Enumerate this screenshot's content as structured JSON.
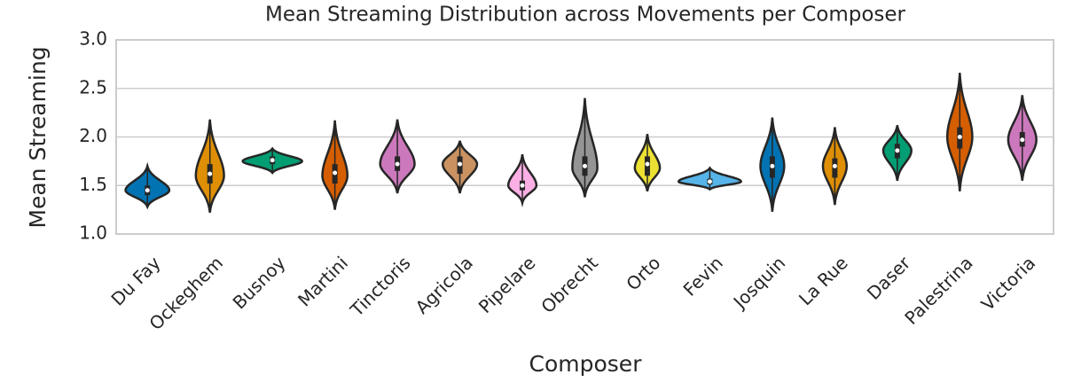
{
  "chart_data": {
    "type": "violin",
    "title": "Mean Streaming Distribution across Movements per Composer",
    "xlabel": "Composer",
    "ylabel": "Mean Streaming",
    "categories": [
      "Du Fay",
      "Ockeghem",
      "Busnoy",
      "Martini",
      "Tinctoris",
      "Agricola",
      "Pipelare",
      "Obrecht",
      "Orto",
      "Fevin",
      "Josquin",
      "La Rue",
      "Daser",
      "Palestrina",
      "Victoria"
    ],
    "violins": [
      {
        "color": "#0173b2",
        "min": 1.28,
        "q1": 1.4,
        "median": 1.45,
        "q3": 1.5,
        "max": 1.7,
        "mode": 1.45,
        "density": 0.7
      },
      {
        "color": "#de8f05",
        "min": 1.22,
        "q1": 1.52,
        "median": 1.62,
        "q3": 1.72,
        "max": 2.18,
        "mode": 1.6,
        "density": 0.45
      },
      {
        "color": "#029e73",
        "min": 1.63,
        "q1": 1.72,
        "median": 1.76,
        "q3": 1.8,
        "max": 1.88,
        "mode": 1.75,
        "density": 0.95
      },
      {
        "color": "#d55e00",
        "min": 1.25,
        "q1": 1.52,
        "median": 1.63,
        "q3": 1.72,
        "max": 2.17,
        "mode": 1.6,
        "density": 0.4
      },
      {
        "color": "#cc78bc",
        "min": 1.42,
        "q1": 1.65,
        "median": 1.72,
        "q3": 1.8,
        "max": 2.18,
        "mode": 1.72,
        "density": 0.55
      },
      {
        "color": "#ca9161",
        "min": 1.42,
        "q1": 1.62,
        "median": 1.72,
        "q3": 1.8,
        "max": 1.96,
        "mode": 1.72,
        "density": 0.55
      },
      {
        "color": "#fbafe4",
        "min": 1.32,
        "q1": 1.45,
        "median": 1.5,
        "q3": 1.55,
        "max": 1.82,
        "mode": 1.5,
        "density": 0.45
      },
      {
        "color": "#949494",
        "min": 1.38,
        "q1": 1.6,
        "median": 1.7,
        "q3": 1.8,
        "max": 2.4,
        "mode": 1.68,
        "density": 0.4
      },
      {
        "color": "#ece133",
        "min": 1.44,
        "q1": 1.6,
        "median": 1.72,
        "q3": 1.8,
        "max": 2.03,
        "mode": 1.68,
        "density": 0.4
      },
      {
        "color": "#56b4e9",
        "min": 1.46,
        "q1": 1.51,
        "median": 1.54,
        "q3": 1.57,
        "max": 1.68,
        "mode": 1.54,
        "density": 1.0
      },
      {
        "color": "#0173b2",
        "min": 1.23,
        "q1": 1.58,
        "median": 1.7,
        "q3": 1.8,
        "max": 2.2,
        "mode": 1.7,
        "density": 0.38
      },
      {
        "color": "#de8f05",
        "min": 1.3,
        "q1": 1.58,
        "median": 1.7,
        "q3": 1.78,
        "max": 2.1,
        "mode": 1.7,
        "density": 0.38
      },
      {
        "color": "#029e73",
        "min": 1.55,
        "q1": 1.78,
        "median": 1.86,
        "q3": 1.93,
        "max": 2.12,
        "mode": 1.86,
        "density": 0.45
      },
      {
        "color": "#d55e00",
        "min": 1.44,
        "q1": 1.88,
        "median": 2.0,
        "q3": 2.1,
        "max": 2.66,
        "mode": 2.0,
        "density": 0.4
      },
      {
        "color": "#cc78bc",
        "min": 1.55,
        "q1": 1.9,
        "median": 1.97,
        "q3": 2.05,
        "max": 2.43,
        "mode": 1.97,
        "density": 0.45
      }
    ],
    "ylim": [
      1,
      3
    ],
    "yticks": [
      {
        "value": 1,
        "label": "1.0"
      },
      1.5,
      {
        "value": 2,
        "label": "2.0"
      },
      2.5,
      {
        "value": 3,
        "label": "3.0"
      }
    ],
    "grid": true
  }
}
